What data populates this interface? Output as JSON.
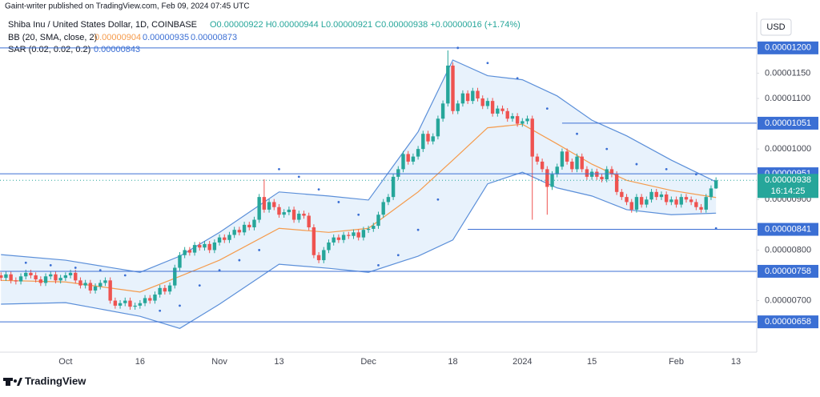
{
  "chart_data": {
    "type": "candlestick",
    "publisher": "Gaint-writer published on TradingView.com, Feb 09, 2024 07:45 UTC",
    "ohlc_legend": "O0.00000922 H0.00000944 L0.00000921 C0.00000938 +0.00000016 (+1.74%)",
    "currency": "USD",
    "brand": "TradingView",
    "up_color": "#26a69a",
    "down_color": "#ef5350",
    "xlim": [
      -0.2,
      152.2
    ],
    "xticks": [
      {
        "value": 13,
        "label": "Oct"
      },
      {
        "value": 28,
        "label": "16"
      },
      {
        "value": 44,
        "label": "Nov"
      },
      {
        "value": 56,
        "label": "13"
      },
      {
        "value": 74,
        "label": "Dec"
      },
      {
        "value": 91,
        "label": "18"
      },
      {
        "value": 105,
        "label": "2024"
      },
      {
        "value": 119,
        "label": "15"
      },
      {
        "value": 136,
        "label": "Feb"
      },
      {
        "value": 148,
        "label": "13"
      }
    ],
    "ylim": [
      5.98e-06,
      1.271e-05
    ],
    "yticks": [
      {
        "value": 7e-06,
        "label": "0.00000700"
      },
      {
        "value": 8e-06,
        "label": "0.00000800"
      },
      {
        "value": 9e-06,
        "label": "0.00000900"
      },
      {
        "value": 1e-05,
        "label": "0.00001000"
      },
      {
        "value": 1.1e-05,
        "label": "0.00001100"
      },
      {
        "value": 1.15e-05,
        "label": "0.00001150"
      }
    ],
    "series": [
      {
        "name": "Shiba Inu / United States Dollar, 1D, COINBASE",
        "open": [
          7.5e-06,
          7.45e-06,
          7.52e-06,
          7.4e-06,
          7.38e-06,
          7.48e-06,
          7.55e-06,
          7.5e-06,
          7.42e-06,
          7.35e-06,
          7.48e-06,
          7.52e-06,
          7.4e-06,
          7.45e-06,
          7.5e-06,
          7.55e-06,
          7.4e-06,
          7.3e-06,
          7.35e-06,
          7.2e-06,
          7.28e-06,
          7.35e-06,
          7.4e-06,
          7e-06,
          6.9e-06,
          6.95e-06,
          7e-06,
          6.88e-06,
          6.9e-06,
          6.95e-06,
          7.05e-06,
          7e-06,
          7.12e-06,
          7.25e-06,
          7.18e-06,
          7.3e-06,
          7.65e-06,
          7.9e-06,
          8e-06,
          7.95e-06,
          8.1e-06,
          8.05e-06,
          8.12e-06,
          8e-06,
          8.15e-06,
          8.25e-06,
          8.2e-06,
          8.3e-06,
          8.4e-06,
          8.35e-06,
          8.5e-06,
          8.45e-06,
          8.6e-06,
          9.05e-06,
          8.8e-06,
          8.95e-06,
          8.85e-06,
          8.7e-06,
          8.75e-06,
          8.8e-06,
          8.6e-06,
          8.72e-06,
          8.68e-06,
          8.45e-06,
          7.9e-06,
          7.8e-06,
          8e-06,
          8.15e-06,
          8.25e-06,
          8.2e-06,
          8.3e-06,
          8.28e-06,
          8.35e-06,
          8.25e-06,
          8.4e-06,
          8.42e-06,
          8.48e-06,
          8.7e-06,
          8.95e-06,
          9.05e-06,
          9.45e-06,
          9.6e-06,
          9.9e-06,
          9.75e-06,
          9.85e-06,
          1e-05,
          1.03e-05,
          1.015e-05,
          1.025e-05,
          1.06e-05,
          1.09e-05,
          1.165e-05,
          1.075e-05,
          1.09e-05,
          1.11e-05,
          1.095e-05,
          1.115e-05,
          1.1e-05,
          1.085e-05,
          1.095e-05,
          1.07e-05,
          1.08e-05,
          1.075e-05,
          1.06e-05,
          1.065e-05,
          1.05e-05,
          1.055e-05,
          1.06e-05,
          9.85e-06,
          9.75e-06,
          9.6e-06,
          9.25e-06,
          9.5e-06,
          9.65e-06,
          9.95e-06,
          9.75e-06,
          9.6e-06,
          9.85e-06,
          9.6e-06,
          9.45e-06,
          9.55e-06,
          9.45e-06,
          9.4e-06,
          9.6e-06,
          9.5e-06,
          9.15e-06,
          9.05e-06,
          8.95e-06,
          8.8e-06,
          9.05e-06,
          8.9e-06,
          9e-06,
          9.15e-06,
          9.05e-06,
          9.1e-06,
          8.95e-06,
          9e-06,
          8.9e-06,
          9.05e-06,
          9e-06,
          8.95e-06,
          8.85e-06,
          8.8e-06,
          9.05e-06,
          9.22e-06
        ],
        "high": [
          7.56e-06,
          7.58e-06,
          7.58e-06,
          7.46e-06,
          7.54e-06,
          7.61e-06,
          7.61e-06,
          7.56e-06,
          7.48e-06,
          7.54e-06,
          7.58e-06,
          7.58e-06,
          7.51e-06,
          7.56e-06,
          7.61e-06,
          7.61e-06,
          7.46e-06,
          7.41e-06,
          7.41e-06,
          7.34e-06,
          7.41e-06,
          7.46e-06,
          7.46e-06,
          7.06e-06,
          7.01e-06,
          7.06e-06,
          7.06e-06,
          6.96e-06,
          7.01e-06,
          7.11e-06,
          7.11e-06,
          7.18e-06,
          7.31e-06,
          7.31e-06,
          7.36e-06,
          7.71e-06,
          7.96e-06,
          8.06e-06,
          8.06e-06,
          8.16e-06,
          8.16e-06,
          8.18e-06,
          8.18e-06,
          8.21e-06,
          8.31e-06,
          8.31e-06,
          8.36e-06,
          8.46e-06,
          8.46e-06,
          8.56e-06,
          8.56e-06,
          8.66e-06,
          9.11e-06,
          9.4e-06,
          9.01e-06,
          9.01e-06,
          8.91e-06,
          8.81e-06,
          8.86e-06,
          8.86e-06,
          8.78e-06,
          8.78e-06,
          8.74e-06,
          8.51e-06,
          7.96e-06,
          8.06e-06,
          8.21e-06,
          8.31e-06,
          8.31e-06,
          8.36e-06,
          8.36e-06,
          8.41e-06,
          8.41e-06,
          8.46e-06,
          8.48e-06,
          8.54e-06,
          8.76e-06,
          9.01e-06,
          9.11e-06,
          9.51e-06,
          9.66e-06,
          9.96e-06,
          9.96e-06,
          9.91e-06,
          1.006e-05,
          1.036e-05,
          1.036e-05,
          1.031e-05,
          1.066e-05,
          1.096e-05,
          1.195e-05,
          1.171e-05,
          1.096e-05,
          1.116e-05,
          1.116e-05,
          1.121e-05,
          1.121e-05,
          1.106e-05,
          1.101e-05,
          1.101e-05,
          1.086e-05,
          1.086e-05,
          1.081e-05,
          1.071e-05,
          1.071e-05,
          1.061e-05,
          1.066e-05,
          1.066e-05,
          9.91e-06,
          9.81e-06,
          9.66e-06,
          9.56e-06,
          9.71e-06,
          1.001e-05,
          1.001e-05,
          9.81e-06,
          9.91e-06,
          9.91e-06,
          9.66e-06,
          9.61e-06,
          9.61e-06,
          9.51e-06,
          9.66e-06,
          9.66e-06,
          9.56e-06,
          9.21e-06,
          9.11e-06,
          9.01e-06,
          9.11e-06,
          9.11e-06,
          9.06e-06,
          9.21e-06,
          9.21e-06,
          9.16e-06,
          9.16e-06,
          9.06e-06,
          9.06e-06,
          9.11e-06,
          9.11e-06,
          9.06e-06,
          9.01e-06,
          8.91e-06,
          9.11e-06,
          9.28e-06,
          9.44e-06
        ],
        "low": [
          7.39e-06,
          7.39e-06,
          7.34e-06,
          7.32e-06,
          7.32e-06,
          7.42e-06,
          7.44e-06,
          7.36e-06,
          7.29e-06,
          7.29e-06,
          7.42e-06,
          7.34e-06,
          7.34e-06,
          7.39e-06,
          7.44e-06,
          7.34e-06,
          7.24e-06,
          7.24e-06,
          7.14e-06,
          7.14e-06,
          7.22e-06,
          7.29e-06,
          6.94e-06,
          6.84e-06,
          6.84e-06,
          6.89e-06,
          6.82e-06,
          6.82e-06,
          6.84e-06,
          6.89e-06,
          6.94e-06,
          6.94e-06,
          7.06e-06,
          7.12e-06,
          7.12e-06,
          7.24e-06,
          7.59e-06,
          7.84e-06,
          7.89e-06,
          7.89e-06,
          7.99e-06,
          7.99e-06,
          7.94e-06,
          7.94e-06,
          8.09e-06,
          8.14e-06,
          8.14e-06,
          8.24e-06,
          8.29e-06,
          8.29e-06,
          8.39e-06,
          8.39e-06,
          8.54e-06,
          8.74e-06,
          8.74e-06,
          8.79e-06,
          8.64e-06,
          8.64e-06,
          8.69e-06,
          8.54e-06,
          8.54e-06,
          8.62e-06,
          8.39e-06,
          7.84e-06,
          7.74e-06,
          7.74e-06,
          7.94e-06,
          8.09e-06,
          8.14e-06,
          8.14e-06,
          8.22e-06,
          8.22e-06,
          8.19e-06,
          8.19e-06,
          8.34e-06,
          8.36e-06,
          8.42e-06,
          8.64e-06,
          8.89e-06,
          8.99e-06,
          9.39e-06,
          9.54e-06,
          9.69e-06,
          9.69e-06,
          9.79e-06,
          9.94e-06,
          1.009e-05,
          1.009e-05,
          1.019e-05,
          1.054e-05,
          1.084e-05,
          1.069e-05,
          1.069e-05,
          1.084e-05,
          1.089e-05,
          1.089e-05,
          1.094e-05,
          1.079e-05,
          1.079e-05,
          1.064e-05,
          1.064e-05,
          1.069e-05,
          1.054e-05,
          1.054e-05,
          1.044e-05,
          1.044e-05,
          1.049e-05,
          8.6e-06,
          9.69e-06,
          9.54e-06,
          8.7e-06,
          9.19e-06,
          9.44e-06,
          9.59e-06,
          9.69e-06,
          9.54e-06,
          9.54e-06,
          9.54e-06,
          9.39e-06,
          9.39e-06,
          9.39e-06,
          9.34e-06,
          9.34e-06,
          9.44e-06,
          9.09e-06,
          8.99e-06,
          8.89e-06,
          8.74e-06,
          8.74e-06,
          8.84e-06,
          8.84e-06,
          8.94e-06,
          8.99e-06,
          8.99e-06,
          8.89e-06,
          8.89e-06,
          8.84e-06,
          8.84e-06,
          8.94e-06,
          8.89e-06,
          8.79e-06,
          8.74e-06,
          8.74e-06,
          8.99e-06,
          9.21e-06
        ],
        "close": [
          7.45e-06,
          7.52e-06,
          7.4e-06,
          7.38e-06,
          7.48e-06,
          7.55e-06,
          7.5e-06,
          7.42e-06,
          7.35e-06,
          7.48e-06,
          7.52e-06,
          7.4e-06,
          7.45e-06,
          7.5e-06,
          7.55e-06,
          7.4e-06,
          7.3e-06,
          7.35e-06,
          7.2e-06,
          7.28e-06,
          7.35e-06,
          7.4e-06,
          7e-06,
          6.9e-06,
          6.95e-06,
          7e-06,
          6.88e-06,
          6.9e-06,
          6.95e-06,
          7.05e-06,
          7e-06,
          7.12e-06,
          7.25e-06,
          7.18e-06,
          7.3e-06,
          7.65e-06,
          7.9e-06,
          8e-06,
          7.95e-06,
          8.1e-06,
          8.05e-06,
          8.12e-06,
          8e-06,
          8.15e-06,
          8.25e-06,
          8.2e-06,
          8.3e-06,
          8.4e-06,
          8.35e-06,
          8.5e-06,
          8.45e-06,
          8.6e-06,
          9.05e-06,
          8.8e-06,
          8.95e-06,
          8.85e-06,
          8.7e-06,
          8.75e-06,
          8.8e-06,
          8.6e-06,
          8.72e-06,
          8.68e-06,
          8.45e-06,
          7.9e-06,
          7.8e-06,
          8e-06,
          8.15e-06,
          8.25e-06,
          8.2e-06,
          8.3e-06,
          8.28e-06,
          8.35e-06,
          8.25e-06,
          8.4e-06,
          8.42e-06,
          8.48e-06,
          8.7e-06,
          8.95e-06,
          9.05e-06,
          9.45e-06,
          9.6e-06,
          9.9e-06,
          9.75e-06,
          9.85e-06,
          1e-05,
          1.03e-05,
          1.015e-05,
          1.025e-05,
          1.06e-05,
          1.09e-05,
          1.165e-05,
          1.075e-05,
          1.09e-05,
          1.11e-05,
          1.095e-05,
          1.115e-05,
          1.1e-05,
          1.085e-05,
          1.095e-05,
          1.07e-05,
          1.08e-05,
          1.075e-05,
          1.06e-05,
          1.065e-05,
          1.05e-05,
          1.055e-05,
          1.06e-05,
          9.85e-06,
          9.75e-06,
          9.6e-06,
          9.25e-06,
          9.5e-06,
          9.65e-06,
          9.95e-06,
          9.75e-06,
          9.6e-06,
          9.85e-06,
          9.6e-06,
          9.45e-06,
          9.55e-06,
          9.45e-06,
          9.4e-06,
          9.6e-06,
          9.5e-06,
          9.15e-06,
          9.05e-06,
          8.95e-06,
          8.8e-06,
          9.05e-06,
          8.9e-06,
          9e-06,
          9.15e-06,
          9.05e-06,
          9.1e-06,
          8.95e-06,
          9e-06,
          8.9e-06,
          9.05e-06,
          9e-06,
          8.95e-06,
          8.85e-06,
          8.8e-06,
          9.05e-06,
          9.22e-06,
          9.38e-06
        ]
      }
    ],
    "bb": {
      "name": "BB (20, SMA, close, 2)",
      "last_labels": [
        "0.00000904",
        "0.00000935",
        "0.00000873"
      ],
      "basis_color": "#f59b4c",
      "band_color": "#5b8fd9",
      "fill": "#e8f2fc",
      "x": [
        0,
        13,
        28,
        36,
        44,
        56,
        66,
        74,
        84,
        91,
        98,
        105,
        112,
        119,
        126,
        135,
        144
      ],
      "upper": [
        7.91e-06,
        7.8e-06,
        7.56e-06,
        7.88e-06,
        8.35e-06,
        9.15e-06,
        9.07e-06,
        8.99e-06,
        1.034e-05,
        1.176e-05,
        1.145e-05,
        1.137e-05,
        1.105e-05,
        1.057e-05,
        1.026e-05,
        9.78e-06,
        9.35e-06
      ],
      "basis": [
        7.4e-06,
        7.37e-06,
        7.17e-06,
        7.48e-06,
        7.8e-06,
        8.43e-06,
        8.35e-06,
        8.43e-06,
        9.15e-06,
        9.78e-06,
        1.042e-05,
        1.049e-05,
        1.01e-05,
        9.7e-06,
        9.38e-06,
        9.18e-06,
        9.04e-06
      ],
      "lower": [
        6.93e-06,
        6.96e-06,
        6.69e-06,
        6.45e-06,
        6.93e-06,
        7.72e-06,
        7.64e-06,
        7.56e-06,
        7.88e-06,
        8.2e-06,
        9.31e-06,
        9.54e-06,
        9.23e-06,
        9.07e-06,
        8.8e-06,
        8.7e-06,
        8.73e-06
      ]
    },
    "sar": {
      "name": "SAR (0.02, 0.02, 0.2)",
      "last_label": "0.00000843",
      "color": "#3b6fd4",
      "x": [
        5,
        10,
        15,
        20,
        25,
        32,
        36,
        40,
        44,
        48,
        52,
        56,
        60,
        64,
        68,
        72,
        76,
        80,
        84,
        88,
        92,
        98,
        104,
        110,
        116,
        122,
        128,
        134,
        140,
        144
      ],
      "values": [
        7.75e-06,
        7.7e-06,
        7.65e-06,
        7.6e-06,
        7.5e-06,
        6.8e-06,
        6.9e-06,
        7.3e-06,
        7.6e-06,
        7.8e-06,
        8e-06,
        9.6e-06,
        9.45e-06,
        9.2e-06,
        8.95e-06,
        8.7e-06,
        7.7e-06,
        7.9e-06,
        8.4e-06,
        9e-06,
        1.2e-05,
        1.17e-05,
        1.14e-05,
        1.08e-05,
        1.03e-05,
        1e-05,
        9.7e-06,
        9.6e-06,
        9.5e-06,
        8.43e-06
      ]
    },
    "levels_color": "#3b6fd4",
    "levels": [
      {
        "value": 1.2e-05,
        "label": "0.00001200",
        "x_start": -0.2
      },
      {
        "value": 1.051e-05,
        "label": "0.00001051",
        "x_start": 113
      },
      {
        "value": 9.51e-06,
        "label": "0.00000951",
        "x_start": -0.2
      },
      {
        "value": 8.41e-06,
        "label": "0.00000841",
        "x_start": 94
      },
      {
        "value": 7.58e-06,
        "label": "0.00000758",
        "x_start": -0.2
      },
      {
        "value": 6.58e-06,
        "label": "0.00000658",
        "x_start": -0.2
      }
    ],
    "last_price": {
      "value": 9.38e-06,
      "label": "0.00000938",
      "countdown": "16:14:25"
    }
  }
}
